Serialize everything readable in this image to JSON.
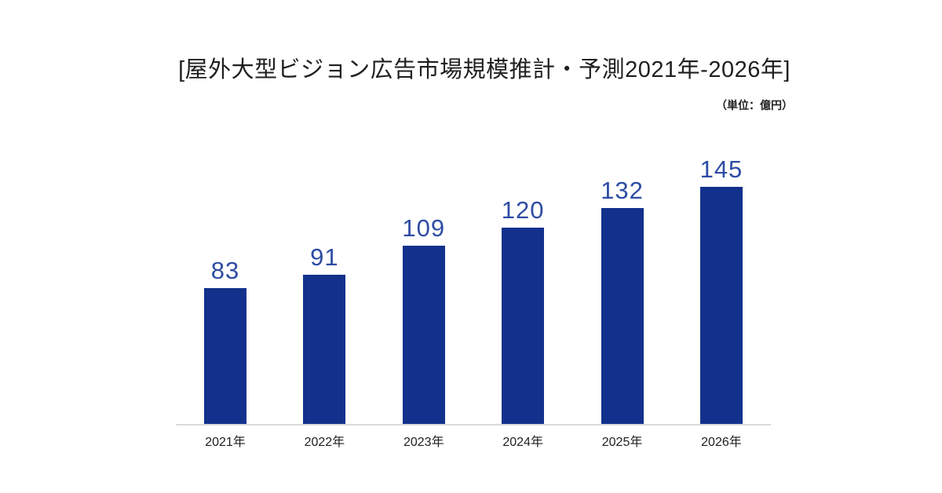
{
  "chart_data": {
    "type": "bar",
    "title": "[屋外大型ビジョン広告市場規模推計・予測2021年-2026年]",
    "unit_note": "（単位：億円）",
    "categories": [
      "2021年",
      "2022年",
      "2023年",
      "2024年",
      "2025年",
      "2026年"
    ],
    "values": [
      83,
      91,
      109,
      120,
      132,
      145
    ],
    "xlabel": "",
    "ylabel": "",
    "ylim": [
      0,
      160
    ],
    "grid": false,
    "legend": false,
    "value_labels_shown": true,
    "bar_color": "#12318c",
    "value_label_color": "#2e4ca3",
    "axis_line_color": "#dadada",
    "text_color": "#1f1f1f",
    "background_color": "#ffffff"
  }
}
